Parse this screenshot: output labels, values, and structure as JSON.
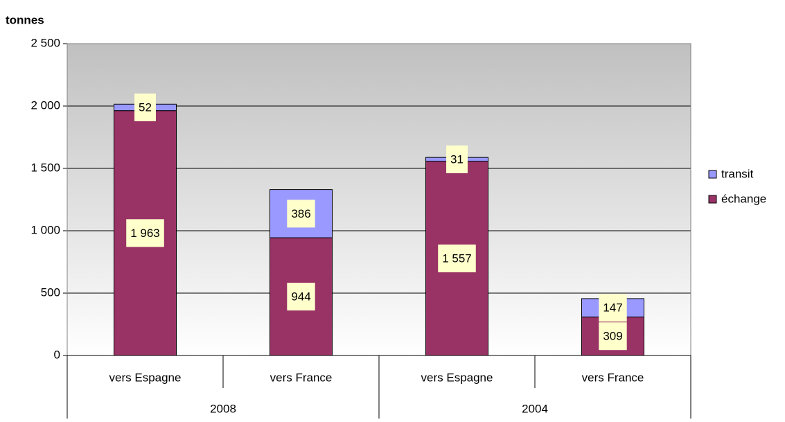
{
  "chart_data": {
    "type": "stacked-bar",
    "y_label": "tonnes",
    "categories": [
      "vers Espagne",
      "vers France",
      "vers Espagne",
      "vers France"
    ],
    "groups": [
      "2008",
      "2004"
    ],
    "series": [
      {
        "name": "échange",
        "color": "#993366",
        "values": [
          1963,
          944,
          1557,
          309
        ],
        "value_labels": [
          "1 963",
          "944",
          "1 557",
          "309"
        ]
      },
      {
        "name": "transit",
        "color": "#9999ff",
        "values": [
          52,
          386,
          31,
          147
        ]
      }
    ],
    "ylim": [
      0,
      2500
    ],
    "yticks": [
      0,
      500,
      {
        "value": 1000,
        "label": "1 000"
      },
      {
        "value": 1500,
        "label": "1 500"
      },
      {
        "value": 2000,
        "label": "2 000"
      },
      {
        "value": 2500,
        "label": "2 500"
      }
    ],
    "grid": true,
    "legend": "right"
  }
}
